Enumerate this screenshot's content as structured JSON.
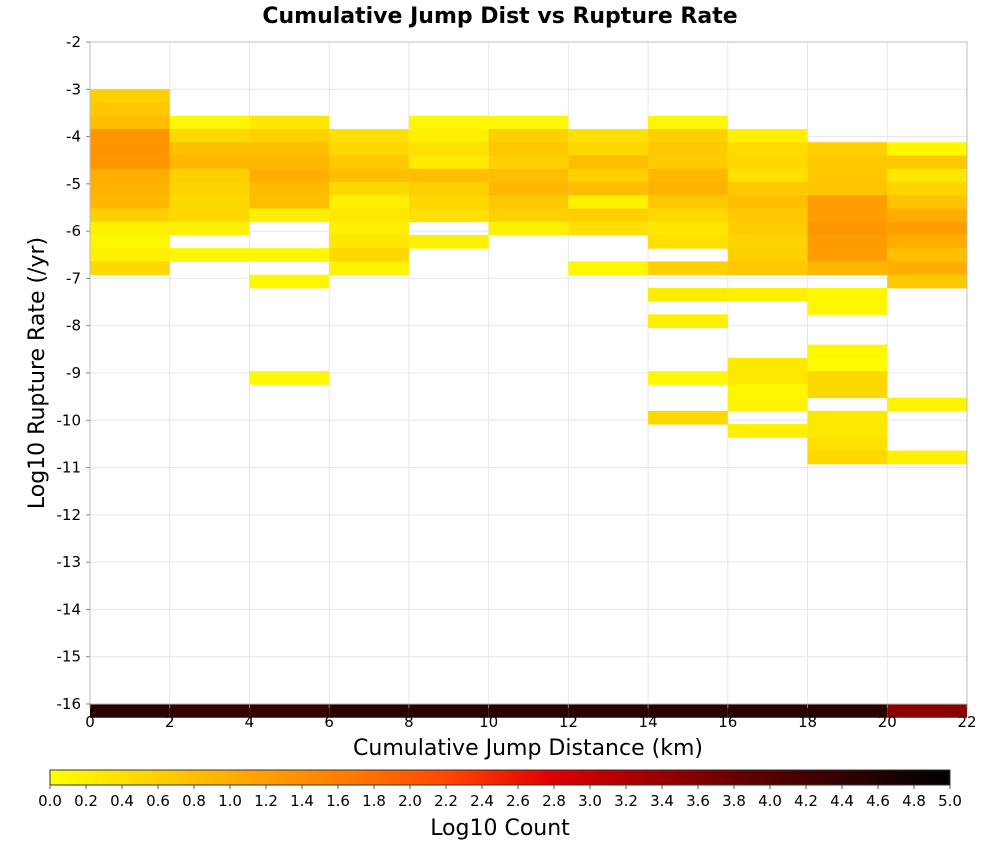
{
  "chart_data": {
    "type": "heatmap",
    "title": "Cumulative Jump Dist vs Rupture Rate",
    "xlabel": "Cumulative Jump Distance (km)",
    "ylabel": "Log10 Rupture Rate (/yr)",
    "xlim": [
      0,
      22
    ],
    "ylim": [
      -16,
      -2
    ],
    "x_ticks": [
      "0",
      "2",
      "4",
      "6",
      "8",
      "10",
      "12",
      "14",
      "16",
      "18",
      "20",
      "22"
    ],
    "y_ticks": [
      "-2",
      "-3",
      "-4",
      "-5",
      "-6",
      "-7",
      "-8",
      "-9",
      "-10",
      "-11",
      "-12",
      "-13",
      "-14",
      "-15",
      "-16"
    ],
    "x_bin_width": 2,
    "y_bin_height": 0.28,
    "grid": true,
    "colorbar": {
      "label": "Log10 Count",
      "min": 0.0,
      "max": 5.0,
      "ticks": [
        "0.0",
        "0.2",
        "0.4",
        "0.6",
        "0.8",
        "1.0",
        "1.2",
        "1.4",
        "1.6",
        "1.8",
        "2.0",
        "2.2",
        "2.4",
        "2.6",
        "2.8",
        "3.0",
        "3.2",
        "3.4",
        "3.6",
        "3.8",
        "4.0",
        "4.2",
        "4.4",
        "4.6",
        "4.8",
        "5.0"
      ],
      "colors": [
        "#ffff00",
        "#ffd400",
        "#ffa500",
        "#ff7a00",
        "#ff4500",
        "#e00000",
        "#a00000",
        "#600000",
        "#300000",
        "#000000"
      ],
      "placement": "bottom"
    },
    "columns": [
      {
        "x0": 0,
        "cells": [
          [
            -3.0,
            0.6
          ],
          [
            -3.28,
            0.7
          ],
          [
            -3.56,
            0.8
          ],
          [
            -3.84,
            1.3
          ],
          [
            -4.12,
            1.35
          ],
          [
            -4.4,
            1.3
          ],
          [
            -4.68,
            1.0
          ],
          [
            -4.96,
            0.95
          ],
          [
            -5.24,
            0.9
          ],
          [
            -5.52,
            0.6
          ],
          [
            -5.8,
            0.2
          ],
          [
            -6.08,
            0.1
          ],
          [
            -6.36,
            0.2
          ],
          [
            -6.64,
            0.5
          ],
          [
            -16.0,
            4.5
          ]
        ]
      },
      {
        "x0": 2,
        "cells": [
          [
            -3.56,
            0.1
          ],
          [
            -3.84,
            0.5
          ],
          [
            -4.12,
            0.8
          ],
          [
            -4.4,
            0.9
          ],
          [
            -4.68,
            0.6
          ],
          [
            -4.96,
            0.55
          ],
          [
            -5.24,
            0.5
          ],
          [
            -5.52,
            0.5
          ],
          [
            -5.8,
            0.2
          ],
          [
            -6.36,
            0.1
          ],
          [
            -16.0,
            4.4
          ]
        ]
      },
      {
        "x0": 4,
        "cells": [
          [
            -3.56,
            0.3
          ],
          [
            -3.84,
            0.6
          ],
          [
            -4.12,
            0.8
          ],
          [
            -4.4,
            0.9
          ],
          [
            -4.68,
            1.0
          ],
          [
            -4.96,
            0.85
          ],
          [
            -5.24,
            0.8
          ],
          [
            -5.52,
            0.2
          ],
          [
            -6.36,
            0.1
          ],
          [
            -6.92,
            0.1
          ],
          [
            -8.96,
            0.1
          ],
          [
            -16.0,
            4.4
          ]
        ]
      },
      {
        "x0": 6,
        "cells": [
          [
            -3.84,
            0.4
          ],
          [
            -4.12,
            0.5
          ],
          [
            -4.4,
            0.7
          ],
          [
            -4.68,
            0.8
          ],
          [
            -4.96,
            0.5
          ],
          [
            -5.24,
            0.2
          ],
          [
            -5.52,
            0.3
          ],
          [
            -5.8,
            0.2
          ],
          [
            -6.08,
            0.3
          ],
          [
            -6.36,
            0.5
          ],
          [
            -6.64,
            0.15
          ],
          [
            -16.0,
            4.5
          ]
        ]
      },
      {
        "x0": 8,
        "cells": [
          [
            -3.56,
            0.1
          ],
          [
            -3.84,
            0.2
          ],
          [
            -4.12,
            0.4
          ],
          [
            -4.4,
            0.25
          ],
          [
            -4.68,
            0.8
          ],
          [
            -4.96,
            0.6
          ],
          [
            -5.24,
            0.5
          ],
          [
            -5.52,
            0.4
          ],
          [
            -6.08,
            0.2
          ],
          [
            -16.0,
            4.5
          ]
        ]
      },
      {
        "x0": 10,
        "cells": [
          [
            -3.56,
            0.1
          ],
          [
            -3.84,
            0.6
          ],
          [
            -4.12,
            0.7
          ],
          [
            -4.4,
            0.6
          ],
          [
            -4.68,
            0.8
          ],
          [
            -4.96,
            0.9
          ],
          [
            -5.24,
            0.7
          ],
          [
            -5.52,
            0.6
          ],
          [
            -5.8,
            0.2
          ],
          [
            -16.0,
            4.5
          ]
        ]
      },
      {
        "x0": 12,
        "cells": [
          [
            -3.84,
            0.4
          ],
          [
            -4.12,
            0.5
          ],
          [
            -4.4,
            0.8
          ],
          [
            -4.68,
            0.6
          ],
          [
            -4.96,
            0.8
          ],
          [
            -5.24,
            0.2
          ],
          [
            -5.52,
            0.6
          ],
          [
            -5.8,
            0.4
          ],
          [
            -6.64,
            0.1
          ],
          [
            -16.0,
            4.5
          ]
        ]
      },
      {
        "x0": 14,
        "cells": [
          [
            -3.56,
            0.1
          ],
          [
            -3.84,
            0.6
          ],
          [
            -4.12,
            0.7
          ],
          [
            -4.4,
            0.65
          ],
          [
            -4.68,
            0.9
          ],
          [
            -4.96,
            0.95
          ],
          [
            -5.24,
            0.7
          ],
          [
            -5.52,
            0.5
          ],
          [
            -5.8,
            0.3
          ],
          [
            -6.08,
            0.4
          ],
          [
            -6.64,
            0.6
          ],
          [
            -7.2,
            0.25
          ],
          [
            -7.76,
            0.2
          ],
          [
            -8.96,
            0.1
          ],
          [
            -9.8,
            0.5
          ],
          [
            -16.0,
            4.5
          ]
        ]
      },
      {
        "x0": 16,
        "cells": [
          [
            -3.84,
            0.2
          ],
          [
            -4.12,
            0.45
          ],
          [
            -4.4,
            0.5
          ],
          [
            -4.68,
            0.4
          ],
          [
            -4.96,
            0.7
          ],
          [
            -5.24,
            0.8
          ],
          [
            -5.52,
            0.7
          ],
          [
            -5.8,
            0.65
          ],
          [
            -6.08,
            0.55
          ],
          [
            -6.36,
            0.6
          ],
          [
            -6.64,
            0.7
          ],
          [
            -7.2,
            0.2
          ],
          [
            -8.68,
            0.3
          ],
          [
            -8.96,
            0.3
          ],
          [
            -9.24,
            0.1
          ],
          [
            -9.52,
            0.15
          ],
          [
            -10.08,
            0.2
          ],
          [
            -16.0,
            4.5
          ]
        ]
      },
      {
        "x0": 18,
        "cells": [
          [
            -4.12,
            0.6
          ],
          [
            -4.4,
            0.7
          ],
          [
            -4.68,
            0.7
          ],
          [
            -4.96,
            0.75
          ],
          [
            -5.24,
            1.2
          ],
          [
            -5.52,
            1.2
          ],
          [
            -5.8,
            1.3
          ],
          [
            -6.08,
            1.25
          ],
          [
            -6.36,
            1.2
          ],
          [
            -6.64,
            0.9
          ],
          [
            -7.2,
            0.1
          ],
          [
            -7.48,
            0.1
          ],
          [
            -8.4,
            0.1
          ],
          [
            -8.68,
            0.05
          ],
          [
            -8.96,
            0.5
          ],
          [
            -9.24,
            0.5
          ],
          [
            -9.8,
            0.3
          ],
          [
            -10.08,
            0.3
          ],
          [
            -10.36,
            0.4
          ],
          [
            -10.64,
            0.5
          ],
          [
            -16.0,
            4.5
          ]
        ]
      },
      {
        "x0": 20,
        "cells": [
          [
            -4.12,
            0.1
          ],
          [
            -4.4,
            0.7
          ],
          [
            -4.68,
            0.3
          ],
          [
            -4.96,
            0.55
          ],
          [
            -5.24,
            0.75
          ],
          [
            -5.52,
            1.0
          ],
          [
            -5.8,
            1.2
          ],
          [
            -6.08,
            1.0
          ],
          [
            -6.36,
            0.8
          ],
          [
            -6.64,
            1.0
          ],
          [
            -6.92,
            0.7
          ],
          [
            -9.52,
            0.15
          ],
          [
            -10.64,
            0.2
          ],
          [
            -16.0,
            3.5
          ]
        ]
      }
    ]
  }
}
